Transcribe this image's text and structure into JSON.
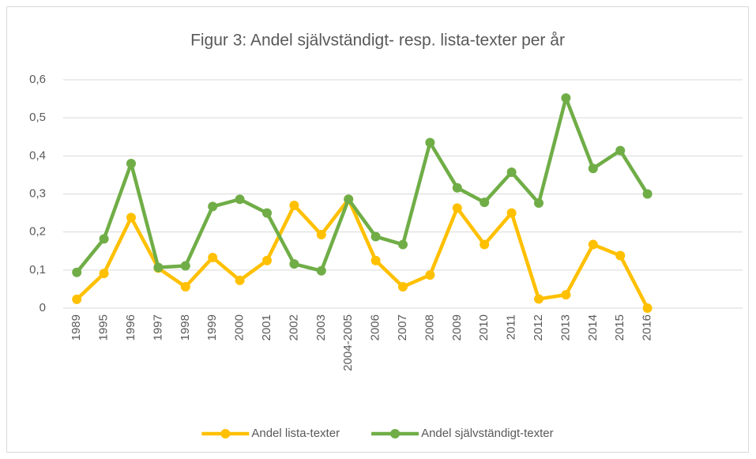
{
  "chart_data": {
    "type": "line",
    "title": "Figur 3: Andel självständigt- resp. lista-texter per år",
    "categories": [
      "1989",
      "1995",
      "1996",
      "1997",
      "1998",
      "1999",
      "2000",
      "2001",
      "2002",
      "2003",
      "2004-2005",
      "2006",
      "2007",
      "2008",
      "2009",
      "2010",
      "2011",
      "2012",
      "2013",
      "2014",
      "2015",
      "2016",
      null,
      null,
      null
    ],
    "series": [
      {
        "name": "Andel lista-texter",
        "color": "#ffc000",
        "values": [
          0.023,
          0.091,
          0.238,
          0.105,
          0.056,
          0.133,
          0.073,
          0.125,
          0.27,
          0.193,
          0.286,
          0.125,
          0.056,
          0.087,
          0.263,
          0.167,
          0.25,
          0.024,
          0.035,
          0.167,
          0.138,
          0,
          null,
          null,
          null
        ]
      },
      {
        "name": "Andel självständigt-texter",
        "color": "#70ad47",
        "values": [
          0.094,
          0.182,
          0.38,
          0.107,
          0.111,
          0.267,
          0.286,
          0.25,
          0.116,
          0.098,
          0.286,
          0.188,
          0.167,
          0.435,
          0.316,
          0.278,
          0.357,
          0.276,
          0.552,
          0.367,
          0.414,
          0.3,
          null,
          null,
          null
        ]
      }
    ],
    "ylim": [
      0,
      0.6
    ],
    "yticks": [
      0,
      {
        "value": 0.1,
        "label": "0,1"
      },
      {
        "value": 0.2,
        "label": "0,2"
      },
      {
        "value": 0.3,
        "label": "0,3"
      },
      {
        "value": 0.4,
        "label": "0,4"
      },
      {
        "value": 0.5,
        "label": "0,5"
      },
      {
        "value": 0.6,
        "label": "0,6"
      }
    ],
    "grid": true,
    "legend": "bottom"
  }
}
